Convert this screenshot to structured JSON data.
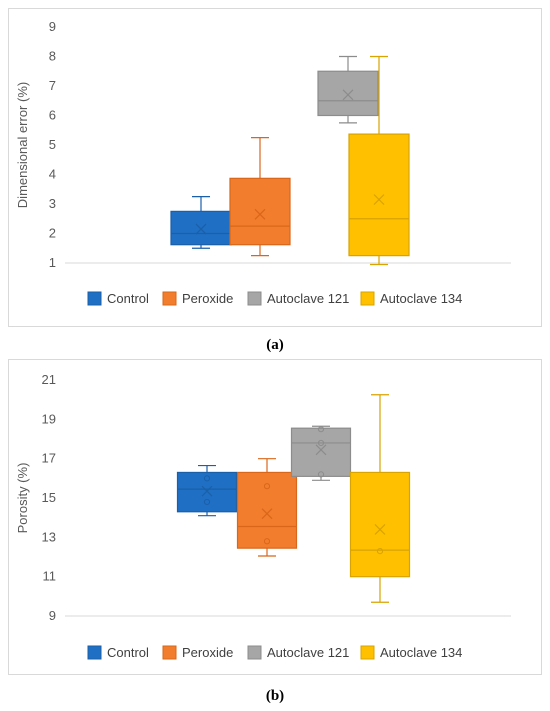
{
  "chart_data": [
    {
      "type": "box",
      "ylabel": "Dimensional error (%)",
      "ylim": [
        1,
        9
      ],
      "yticks": [
        1,
        2,
        3,
        4,
        5,
        6,
        7,
        8,
        9
      ],
      "grid": false,
      "legend": "bottom",
      "caption": "(a)",
      "series": [
        {
          "name": "Control",
          "color": "#1f6fc5",
          "edge": "#1a5fa8",
          "min": 1.5,
          "q1": 1.62,
          "median": 2.0,
          "q3": 2.75,
          "max": 3.25,
          "mean": 2.15,
          "points": []
        },
        {
          "name": "Peroxide",
          "color": "#f27d2c",
          "edge": "#d9661a",
          "min": 1.25,
          "q1": 1.62,
          "median": 2.25,
          "q3": 3.87,
          "max": 5.25,
          "mean": 2.65,
          "points": []
        },
        {
          "name": "Autoclave 121",
          "color": "#a6a6a6",
          "edge": "#8c8c8c",
          "min": 5.75,
          "q1": 6.0,
          "median": 6.5,
          "q3": 7.5,
          "max": 8.0,
          "mean": 6.7,
          "points": []
        },
        {
          "name": "Autoclave 134",
          "color": "#ffc000",
          "edge": "#d9a300",
          "min": 0.95,
          "q1": 1.25,
          "median": 2.5,
          "q3": 5.37,
          "max": 8.0,
          "mean": 3.15,
          "points": []
        }
      ]
    },
    {
      "type": "box",
      "ylabel": "Porosity (%)",
      "ylim": [
        9,
        21
      ],
      "yticks": [
        9,
        11,
        13,
        15,
        17,
        19,
        21
      ],
      "grid": false,
      "legend": "bottom",
      "caption": "(b)",
      "series": [
        {
          "name": "Control",
          "color": "#1f6fc5",
          "edge": "#1a5fa8",
          "min": 14.1,
          "q1": 14.3,
          "median": 15.45,
          "q3": 16.3,
          "max": 16.65,
          "mean": 15.35,
          "points": [
            16.0,
            14.8
          ]
        },
        {
          "name": "Peroxide",
          "color": "#f27d2c",
          "edge": "#d9661a",
          "min": 12.05,
          "q1": 12.45,
          "median": 13.55,
          "q3": 16.3,
          "max": 17.0,
          "mean": 14.2,
          "points": [
            15.6,
            12.8
          ]
        },
        {
          "name": "Autoclave 121",
          "color": "#a6a6a6",
          "edge": "#8c8c8c",
          "min": 15.9,
          "q1": 16.1,
          "median": 17.8,
          "q3": 18.55,
          "max": 18.65,
          "mean": 17.45,
          "points": [
            18.5,
            17.8,
            16.2
          ]
        },
        {
          "name": "Autoclave 134",
          "color": "#ffc000",
          "edge": "#d9a300",
          "min": 9.7,
          "q1": 11.0,
          "median": 12.35,
          "q3": 16.3,
          "max": 20.25,
          "mean": 13.4,
          "points": [
            12.3
          ]
        }
      ]
    }
  ]
}
